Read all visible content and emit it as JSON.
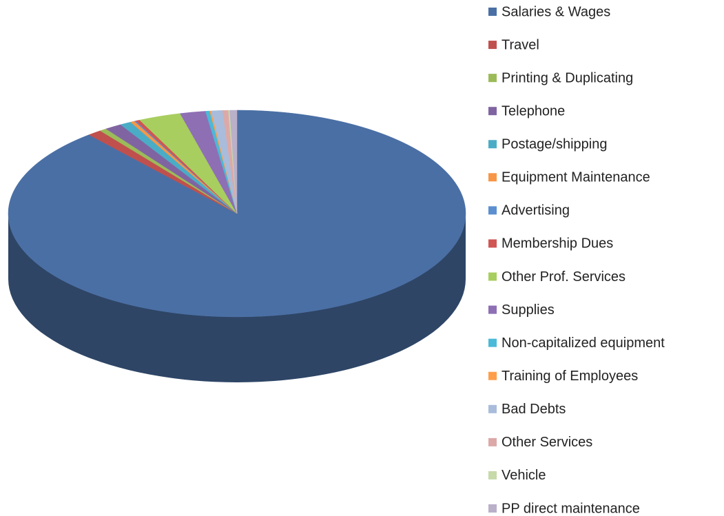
{
  "chart_data": {
    "type": "pie3d",
    "categories": [
      "Salaries & Wages",
      "Travel",
      "Printing & Duplicating",
      "Telephone",
      "Postage/shipping",
      "Equipment Maintenance",
      "Advertising",
      "Membership Dues",
      "Other Prof. Services",
      "Supplies",
      "Non-capitalized equipment",
      "Training of Employees",
      "Bad Debts",
      "Other Services",
      "Vehicle",
      "PP direct maintenance"
    ],
    "values": [
      88.8,
      1,
      0.5,
      1.2,
      0.8,
      0.3,
      0.1,
      0.3,
      3,
      1.8,
      0.3,
      0.1,
      0.8,
      0.4,
      0.1,
      0.5
    ],
    "colors": [
      "#4A6FA5",
      "#C0504D",
      "#9BBB59",
      "#8064A2",
      "#4BACC6",
      "#F79646",
      "#5B8FD0",
      "#D05553",
      "#A8CE5F",
      "#8E6FB4",
      "#4BB9D8",
      "#FF9E4A",
      "#A9BCDB",
      "#DCA9A8",
      "#C6DAAA",
      "#BAB0CA"
    ],
    "legend": "right"
  }
}
